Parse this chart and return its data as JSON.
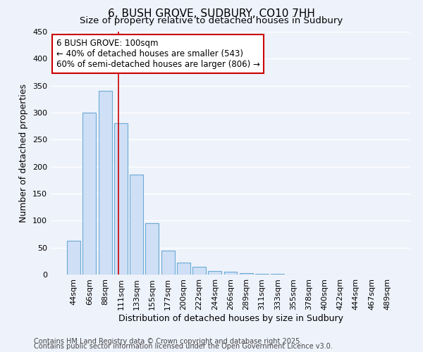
{
  "title": "6, BUSH GROVE, SUDBURY, CO10 7HH",
  "subtitle": "Size of property relative to detached houses in Sudbury",
  "xlabel": "Distribution of detached houses by size in Sudbury",
  "ylabel": "Number of detached properties",
  "bin_labels": [
    "44sqm",
    "66sqm",
    "88sqm",
    "111sqm",
    "133sqm",
    "155sqm",
    "177sqm",
    "200sqm",
    "222sqm",
    "244sqm",
    "266sqm",
    "289sqm",
    "311sqm",
    "333sqm",
    "355sqm",
    "378sqm",
    "400sqm",
    "422sqm",
    "444sqm",
    "467sqm",
    "489sqm"
  ],
  "bar_heights": [
    63,
    300,
    340,
    280,
    185,
    95,
    44,
    22,
    14,
    7,
    5,
    2,
    1,
    1,
    0,
    0,
    0,
    0,
    0,
    0,
    0
  ],
  "bar_color": "#cfdff5",
  "bar_edgecolor": "#6aaad4",
  "vline_x": 2.85,
  "vline_color": "#cc0000",
  "annotation_line1": "6 BUSH GROVE: 100sqm",
  "annotation_line2": "← 40% of detached houses are smaller (543)",
  "annotation_line3": "60% of semi-detached houses are larger (806) →",
  "annotation_fontsize": 8.5,
  "ylim": [
    0,
    450
  ],
  "yticks": [
    0,
    50,
    100,
    150,
    200,
    250,
    300,
    350,
    400,
    450
  ],
  "footnote1": "Contains HM Land Registry data © Crown copyright and database right 2025.",
  "footnote2": "Contains public sector information licensed under the Open Government Licence v3.0.",
  "title_fontsize": 11,
  "subtitle_fontsize": 9.5,
  "xlabel_fontsize": 9,
  "ylabel_fontsize": 9,
  "tick_fontsize": 8,
  "footnote_fontsize": 7,
  "bg_color": "#eef2fb",
  "grid_color": "#ffffff"
}
